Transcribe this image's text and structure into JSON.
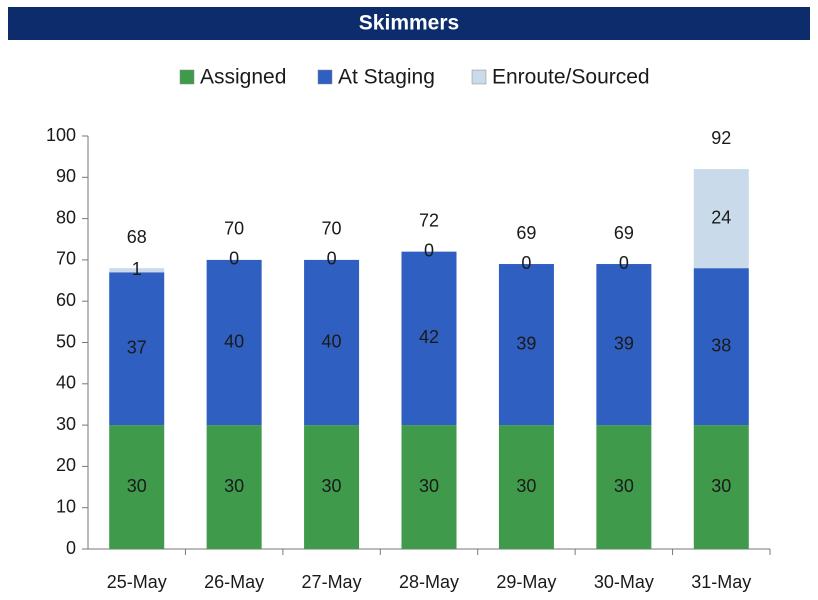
{
  "chart_data": {
    "type": "stacked-bar",
    "title": "Skimmers",
    "categories": [
      "25-May",
      "26-May",
      "27-May",
      "28-May",
      "29-May",
      "30-May",
      "31-May"
    ],
    "series": [
      {
        "name": "Assigned",
        "color": "#3f9a4c",
        "values": [
          30,
          30,
          30,
          30,
          30,
          30,
          30
        ]
      },
      {
        "name": "At Staging",
        "color": "#2f5fc0",
        "values": [
          37,
          40,
          40,
          42,
          39,
          39,
          38
        ]
      },
      {
        "name": "Enroute/Sourced",
        "color": "#c9dbea",
        "values": [
          1,
          0,
          0,
          0,
          0,
          0,
          24
        ]
      }
    ],
    "totals": [
      68,
      70,
      70,
      72,
      69,
      69,
      92
    ],
    "ylim": [
      0,
      100
    ],
    "yticks": [
      0,
      10,
      20,
      30,
      40,
      50,
      60,
      70,
      80,
      90,
      100
    ],
    "legend": "top",
    "grid": false
  }
}
